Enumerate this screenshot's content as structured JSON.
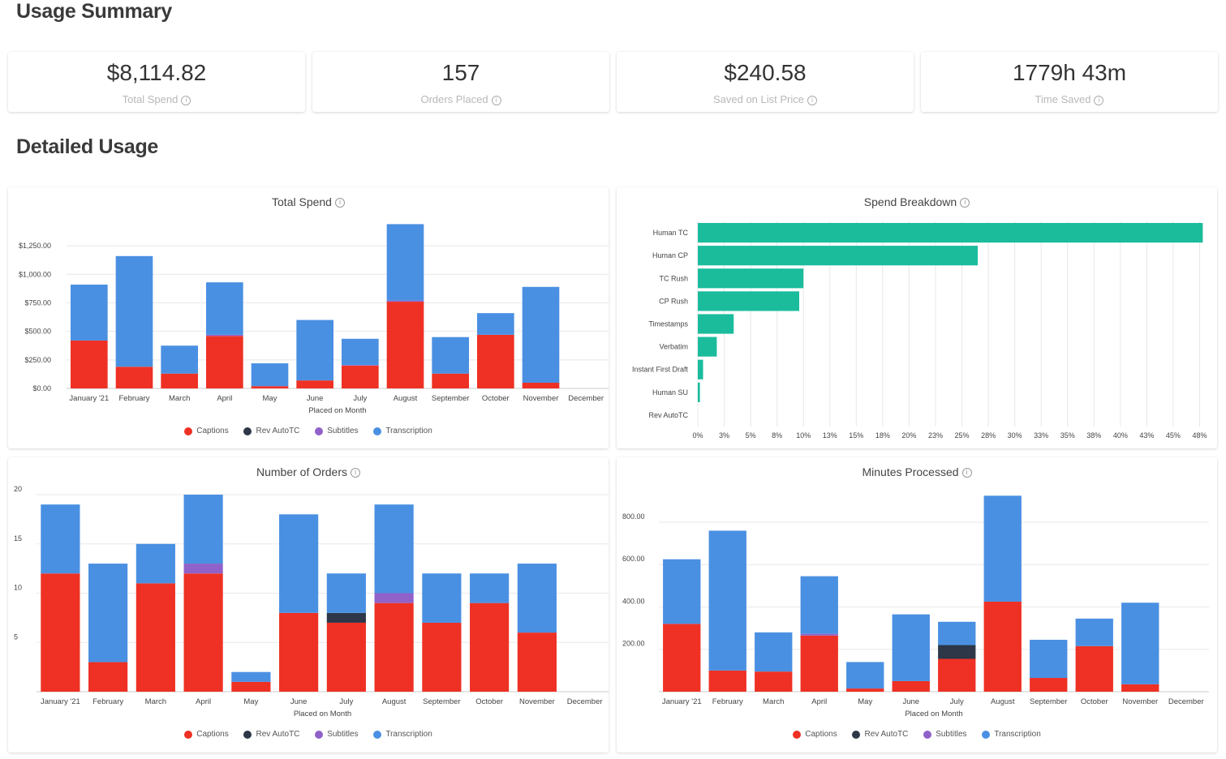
{
  "headings": {
    "usage_summary": "Usage Summary",
    "detailed_usage": "Detailed Usage"
  },
  "stats": [
    {
      "value": "$8,114.82",
      "label": "Total Spend"
    },
    {
      "value": "157",
      "label": "Orders Placed"
    },
    {
      "value": "$240.58",
      "label": "Saved on List Price"
    },
    {
      "value": "1779h 43m",
      "label": "Time Saved"
    }
  ],
  "info_glyph": "i",
  "colors": {
    "Captions": "#ee3124",
    "Rev AutoTC": "#2d3748",
    "Subtitles": "#9061c9",
    "Transcription": "#4a90e2",
    "breakdown": "#1abc9c",
    "grid": "#e8e8e8"
  },
  "legend": [
    "Captions",
    "Rev AutoTC",
    "Subtitles",
    "Transcription"
  ],
  "chart_data": [
    {
      "id": "total_spend",
      "type": "bar",
      "stacked": true,
      "title": "Total Spend",
      "xlabel": "Placed on Month",
      "ylabel": "",
      "categories": [
        "January '21",
        "February",
        "March",
        "April",
        "May",
        "June",
        "July",
        "August",
        "September",
        "October",
        "November",
        "December"
      ],
      "yticks": [
        0,
        250,
        500,
        750,
        1000,
        1250
      ],
      "ytick_labels": [
        "$0.00",
        "$250.00",
        "$500.00",
        "$750.00",
        "$1,000.00",
        "$1,250.00"
      ],
      "ylim": [
        0,
        1450
      ],
      "series": [
        {
          "name": "Captions",
          "values": [
            420,
            190,
            130,
            460,
            20,
            70,
            200,
            760,
            130,
            470,
            50,
            0
          ]
        },
        {
          "name": "Rev AutoTC",
          "values": [
            0,
            0,
            0,
            0,
            0,
            0,
            0,
            0,
            0,
            0,
            0,
            0
          ]
        },
        {
          "name": "Subtitles",
          "values": [
            0,
            0,
            0,
            10,
            0,
            0,
            5,
            10,
            0,
            0,
            0,
            0
          ]
        },
        {
          "name": "Transcription",
          "values": [
            490,
            970,
            245,
            460,
            200,
            530,
            230,
            670,
            320,
            190,
            840,
            0
          ]
        }
      ]
    },
    {
      "id": "spend_breakdown",
      "type": "bar",
      "orientation": "horizontal",
      "title": "Spend Breakdown",
      "categories": [
        "Human TC",
        "Human CP",
        "TC Rush",
        "CP Rush",
        "Timestamps",
        "Verbatim",
        "Instant First Draft",
        "Human SU",
        "Rev AutoTC"
      ],
      "values": [
        47.8,
        26.5,
        10.0,
        9.6,
        3.4,
        1.8,
        0.5,
        0.2,
        0
      ],
      "xticks": [
        0,
        2.5,
        5,
        7.5,
        10,
        12.5,
        15,
        17.5,
        20,
        22.5,
        25,
        27.5,
        30,
        32.5,
        35,
        37.5,
        40,
        42.5,
        45,
        47.5
      ],
      "xtick_labels": [
        "0%",
        "3%",
        "5%",
        "8%",
        "10%",
        "13%",
        "15%",
        "18%",
        "20%",
        "23%",
        "25%",
        "28%",
        "30%",
        "33%",
        "35%",
        "38%",
        "40%",
        "43%",
        "45%",
        "48%"
      ],
      "xlim": [
        0,
        48
      ]
    },
    {
      "id": "number_of_orders",
      "type": "bar",
      "stacked": true,
      "title": "Number of Orders",
      "xlabel": "Placed on Month",
      "categories": [
        "January '21",
        "February",
        "March",
        "April",
        "May",
        "June",
        "July",
        "August",
        "September",
        "October",
        "November",
        "December"
      ],
      "yticks": [
        5,
        10,
        15,
        20
      ],
      "ytick_labels": [
        "5",
        "10",
        "15",
        "20"
      ],
      "ylim": [
        0,
        20
      ],
      "series": [
        {
          "name": "Captions",
          "values": [
            12,
            3,
            11,
            12,
            1,
            8,
            7,
            9,
            7,
            9,
            6,
            0
          ]
        },
        {
          "name": "Rev AutoTC",
          "values": [
            0,
            0,
            0,
            0,
            0,
            0,
            1,
            0,
            0,
            0,
            0,
            0
          ]
        },
        {
          "name": "Subtitles",
          "values": [
            0,
            0,
            0,
            1,
            0,
            0,
            0,
            1,
            0,
            0,
            0,
            0
          ]
        },
        {
          "name": "Transcription",
          "values": [
            7,
            10,
            4,
            7,
            1,
            10,
            4,
            9,
            5,
            3,
            7,
            0
          ]
        }
      ]
    },
    {
      "id": "minutes_processed",
      "type": "bar",
      "stacked": true,
      "title": "Minutes Processed",
      "xlabel": "Placed on Month",
      "categories": [
        "January '21",
        "February",
        "March",
        "April",
        "May",
        "June",
        "July",
        "August",
        "September",
        "October",
        "November",
        "December"
      ],
      "yticks": [
        200,
        400,
        600,
        800
      ],
      "ytick_labels": [
        "200.00",
        "400.00",
        "600.00",
        "800.00"
      ],
      "ylim": [
        0,
        930
      ],
      "series": [
        {
          "name": "Captions",
          "values": [
            320,
            100,
            95,
            265,
            15,
            50,
            155,
            425,
            65,
            215,
            35,
            0
          ]
        },
        {
          "name": "Rev AutoTC",
          "values": [
            0,
            0,
            0,
            0,
            0,
            0,
            65,
            0,
            0,
            0,
            0,
            0
          ]
        },
        {
          "name": "Subtitles",
          "values": [
            0,
            0,
            0,
            8,
            0,
            0,
            0,
            0,
            0,
            0,
            0,
            0
          ]
        },
        {
          "name": "Transcription",
          "values": [
            305,
            660,
            185,
            272,
            125,
            315,
            110,
            500,
            180,
            130,
            385,
            0
          ]
        }
      ]
    }
  ]
}
